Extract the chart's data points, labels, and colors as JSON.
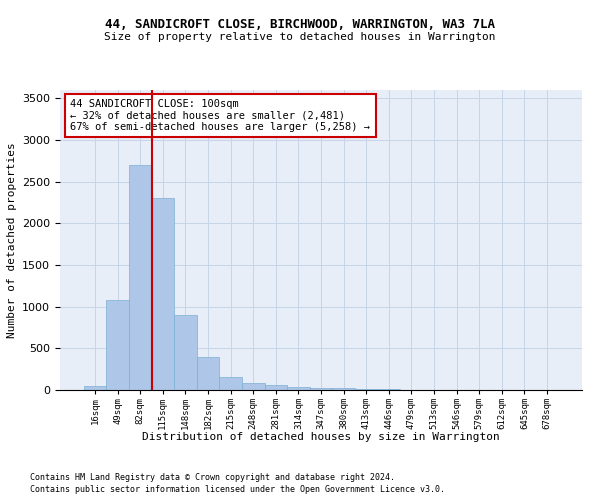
{
  "title_line1": "44, SANDICROFT CLOSE, BIRCHWOOD, WARRINGTON, WA3 7LA",
  "title_line2": "Size of property relative to detached houses in Warrington",
  "xlabel": "Distribution of detached houses by size in Warrington",
  "ylabel": "Number of detached properties",
  "footnote1": "Contains HM Land Registry data © Crown copyright and database right 2024.",
  "footnote2": "Contains public sector information licensed under the Open Government Licence v3.0.",
  "annotation_line1": "44 SANDICROFT CLOSE: 100sqm",
  "annotation_line2": "← 32% of detached houses are smaller (2,481)",
  "annotation_line3": "67% of semi-detached houses are larger (5,258) →",
  "bar_color": "#aec6e8",
  "bar_edge_color": "#7bafd4",
  "vline_color": "#cc0000",
  "annotation_box_edge_color": "#cc0000",
  "grid_color": "#c8d4e8",
  "background_color": "#e8eef8",
  "categories": [
    "16sqm",
    "49sqm",
    "82sqm",
    "115sqm",
    "148sqm",
    "182sqm",
    "215sqm",
    "248sqm",
    "281sqm",
    "314sqm",
    "347sqm",
    "380sqm",
    "413sqm",
    "446sqm",
    "479sqm",
    "513sqm",
    "546sqm",
    "579sqm",
    "612sqm",
    "645sqm",
    "678sqm"
  ],
  "values": [
    50,
    1080,
    2700,
    2300,
    900,
    400,
    160,
    90,
    60,
    40,
    30,
    30,
    10,
    10,
    2,
    1,
    1,
    0,
    0,
    0,
    0
  ],
  "vline_position": 2.5,
  "ylim": [
    0,
    3600
  ],
  "yticks": [
    0,
    500,
    1000,
    1500,
    2000,
    2500,
    3000,
    3500
  ]
}
